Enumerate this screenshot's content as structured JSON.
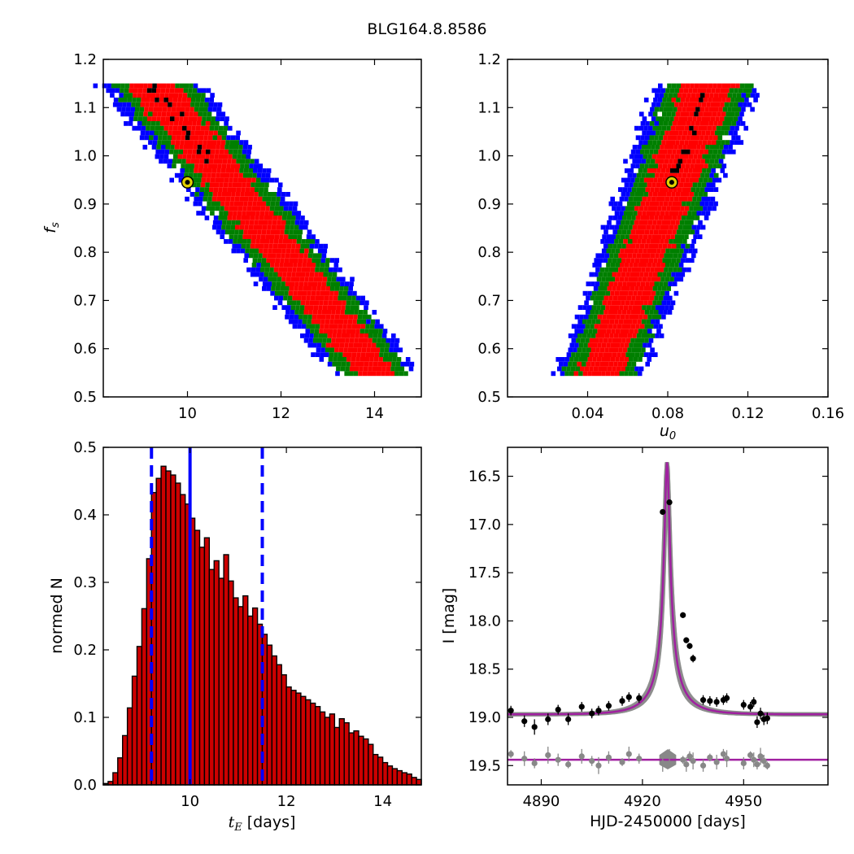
{
  "figure": {
    "title": "BLG164.8.8586"
  },
  "colors": {
    "lvl1": "#0000ff",
    "lvl2": "#007f00",
    "lvl3": "#ff0000",
    "lvl4": "#000000",
    "bar": "#cc0000",
    "median": "#0000ff",
    "model": "#a020a0",
    "mcmc": "#888888",
    "best": "#e0d000"
  },
  "chart_data": [
    {
      "id": "fs_vs_tE",
      "type": "heatmap",
      "xlabel": "",
      "ylabel": "f_s",
      "xlim": [
        8.2,
        15.0
      ],
      "ylim": [
        0.5,
        1.2
      ],
      "xticks": [
        "10",
        "12",
        "14"
      ],
      "xtick_values": [
        10,
        12,
        14
      ],
      "yticks": [
        "0.5",
        "0.6",
        "0.7",
        "0.8",
        "0.9",
        "1.0",
        "1.1",
        "1.2"
      ],
      "ytick_values": [
        0.5,
        0.6,
        0.7,
        0.8,
        0.9,
        1.0,
        1.1,
        1.2
      ],
      "band": {
        "x_top": 9.2,
        "x_bottom": 14.0,
        "y_top": 1.15,
        "y_bottom": 0.55
      },
      "best_fit": {
        "x": 10.0,
        "y": 0.945
      }
    },
    {
      "id": "fs_vs_u0",
      "type": "heatmap",
      "xlabel": "u_0",
      "ylabel": "",
      "xlim": [
        0.0,
        0.16
      ],
      "ylim": [
        0.5,
        1.2
      ],
      "xticks": [
        "0.04",
        "0.08",
        "0.12",
        "0.16"
      ],
      "xtick_values": [
        0.04,
        0.08,
        0.12,
        0.16
      ],
      "yticks": [
        "0.5",
        "0.6",
        "0.7",
        "0.8",
        "0.9",
        "1.0",
        "1.1",
        "1.2"
      ],
      "ytick_values": [
        0.5,
        0.6,
        0.7,
        0.8,
        0.9,
        1.0,
        1.1,
        1.2
      ],
      "band": {
        "x_top": 0.099,
        "x_bottom": 0.045,
        "y_top": 1.15,
        "y_bottom": 0.55
      },
      "best_fit": {
        "x": 0.082,
        "y": 0.945
      }
    },
    {
      "id": "tE_histogram",
      "type": "bar",
      "xlabel": "t_E [days]",
      "ylabel": "normed N",
      "xlim": [
        8.2,
        14.8
      ],
      "ylim": [
        0.0,
        0.5
      ],
      "xticks": [
        "10",
        "12",
        "14"
      ],
      "xtick_values": [
        10,
        12,
        14
      ],
      "yticks": [
        "0.0",
        "0.1",
        "0.2",
        "0.3",
        "0.4",
        "0.5"
      ],
      "ytick_values": [
        0.0,
        0.1,
        0.2,
        0.3,
        0.4,
        0.5
      ],
      "bin_start": 8.2,
      "bin_width": 0.1,
      "values": [
        0.002,
        0.005,
        0.018,
        0.04,
        0.073,
        0.114,
        0.161,
        0.205,
        0.261,
        0.335,
        0.433,
        0.454,
        0.472,
        0.465,
        0.459,
        0.447,
        0.43,
        0.416,
        0.395,
        0.377,
        0.352,
        0.366,
        0.319,
        0.332,
        0.306,
        0.341,
        0.302,
        0.277,
        0.264,
        0.28,
        0.25,
        0.262,
        0.238,
        0.223,
        0.207,
        0.191,
        0.178,
        0.163,
        0.145,
        0.14,
        0.136,
        0.131,
        0.126,
        0.121,
        0.116,
        0.108,
        0.1,
        0.105,
        0.085,
        0.098,
        0.092,
        0.077,
        0.08,
        0.072,
        0.068,
        0.06,
        0.045,
        0.041,
        0.033,
        0.028,
        0.024,
        0.021,
        0.018,
        0.016,
        0.011,
        0.008,
        0.005,
        0.003,
        0.002,
        0.001
      ],
      "median": 10.0,
      "lower": 9.2,
      "upper": 11.5
    },
    {
      "id": "lightcurve",
      "type": "scatter",
      "xlabel": "HJD-2450000 [days]",
      "ylabel": "I [mag]",
      "xlim": [
        4880,
        4975
      ],
      "ylim": [
        19.7,
        16.2
      ],
      "xticks": [
        "4890",
        "4920",
        "4950"
      ],
      "xtick_values": [
        4890,
        4920,
        4950
      ],
      "yticks": [
        "16.5",
        "17.0",
        "17.5",
        "18.0",
        "18.5",
        "19.0",
        "19.5"
      ],
      "ytick_values": [
        16.5,
        17.0,
        17.5,
        18.0,
        18.5,
        19.0,
        19.5
      ],
      "model": {
        "t0": 4927.3,
        "tE": 10.0,
        "u0": 0.082,
        "baseline": 18.97,
        "peak": 16.35
      },
      "residual_baseline": 19.44,
      "points": [
        {
          "x": 4881,
          "y": 18.93,
          "err": 0.05
        },
        {
          "x": 4885,
          "y": 19.04,
          "err": 0.06
        },
        {
          "x": 4888,
          "y": 19.1,
          "err": 0.08
        },
        {
          "x": 4892,
          "y": 19.02,
          "err": 0.06
        },
        {
          "x": 4895,
          "y": 18.92,
          "err": 0.05
        },
        {
          "x": 4898,
          "y": 19.02,
          "err": 0.06
        },
        {
          "x": 4902,
          "y": 18.89,
          "err": 0.05
        },
        {
          "x": 4905,
          "y": 18.96,
          "err": 0.05
        },
        {
          "x": 4907,
          "y": 18.93,
          "err": 0.05
        },
        {
          "x": 4910,
          "y": 18.88,
          "err": 0.05
        },
        {
          "x": 4914,
          "y": 18.83,
          "err": 0.05
        },
        {
          "x": 4916,
          "y": 18.79,
          "err": 0.05
        },
        {
          "x": 4919,
          "y": 18.8,
          "err": 0.05
        },
        {
          "x": 4926,
          "y": 16.87,
          "err": 0.03
        },
        {
          "x": 4928,
          "y": 16.77,
          "err": 0.03
        },
        {
          "x": 4932,
          "y": 17.94,
          "err": 0.03
        },
        {
          "x": 4933,
          "y": 18.2,
          "err": 0.03
        },
        {
          "x": 4934,
          "y": 18.26,
          "err": 0.03
        },
        {
          "x": 4935,
          "y": 18.39,
          "err": 0.04
        },
        {
          "x": 4938,
          "y": 18.82,
          "err": 0.05
        },
        {
          "x": 4940,
          "y": 18.83,
          "err": 0.05
        },
        {
          "x": 4942,
          "y": 18.84,
          "err": 0.05
        },
        {
          "x": 4944,
          "y": 18.82,
          "err": 0.05
        },
        {
          "x": 4945,
          "y": 18.8,
          "err": 0.05
        },
        {
          "x": 4950,
          "y": 18.87,
          "err": 0.05
        },
        {
          "x": 4952,
          "y": 18.89,
          "err": 0.05
        },
        {
          "x": 4953,
          "y": 18.84,
          "err": 0.05
        },
        {
          "x": 4954,
          "y": 19.05,
          "err": 0.06
        },
        {
          "x": 4955,
          "y": 18.96,
          "err": 0.06
        },
        {
          "x": 4956,
          "y": 19.02,
          "err": 0.06
        },
        {
          "x": 4957,
          "y": 19.01,
          "err": 0.06
        }
      ]
    }
  ]
}
